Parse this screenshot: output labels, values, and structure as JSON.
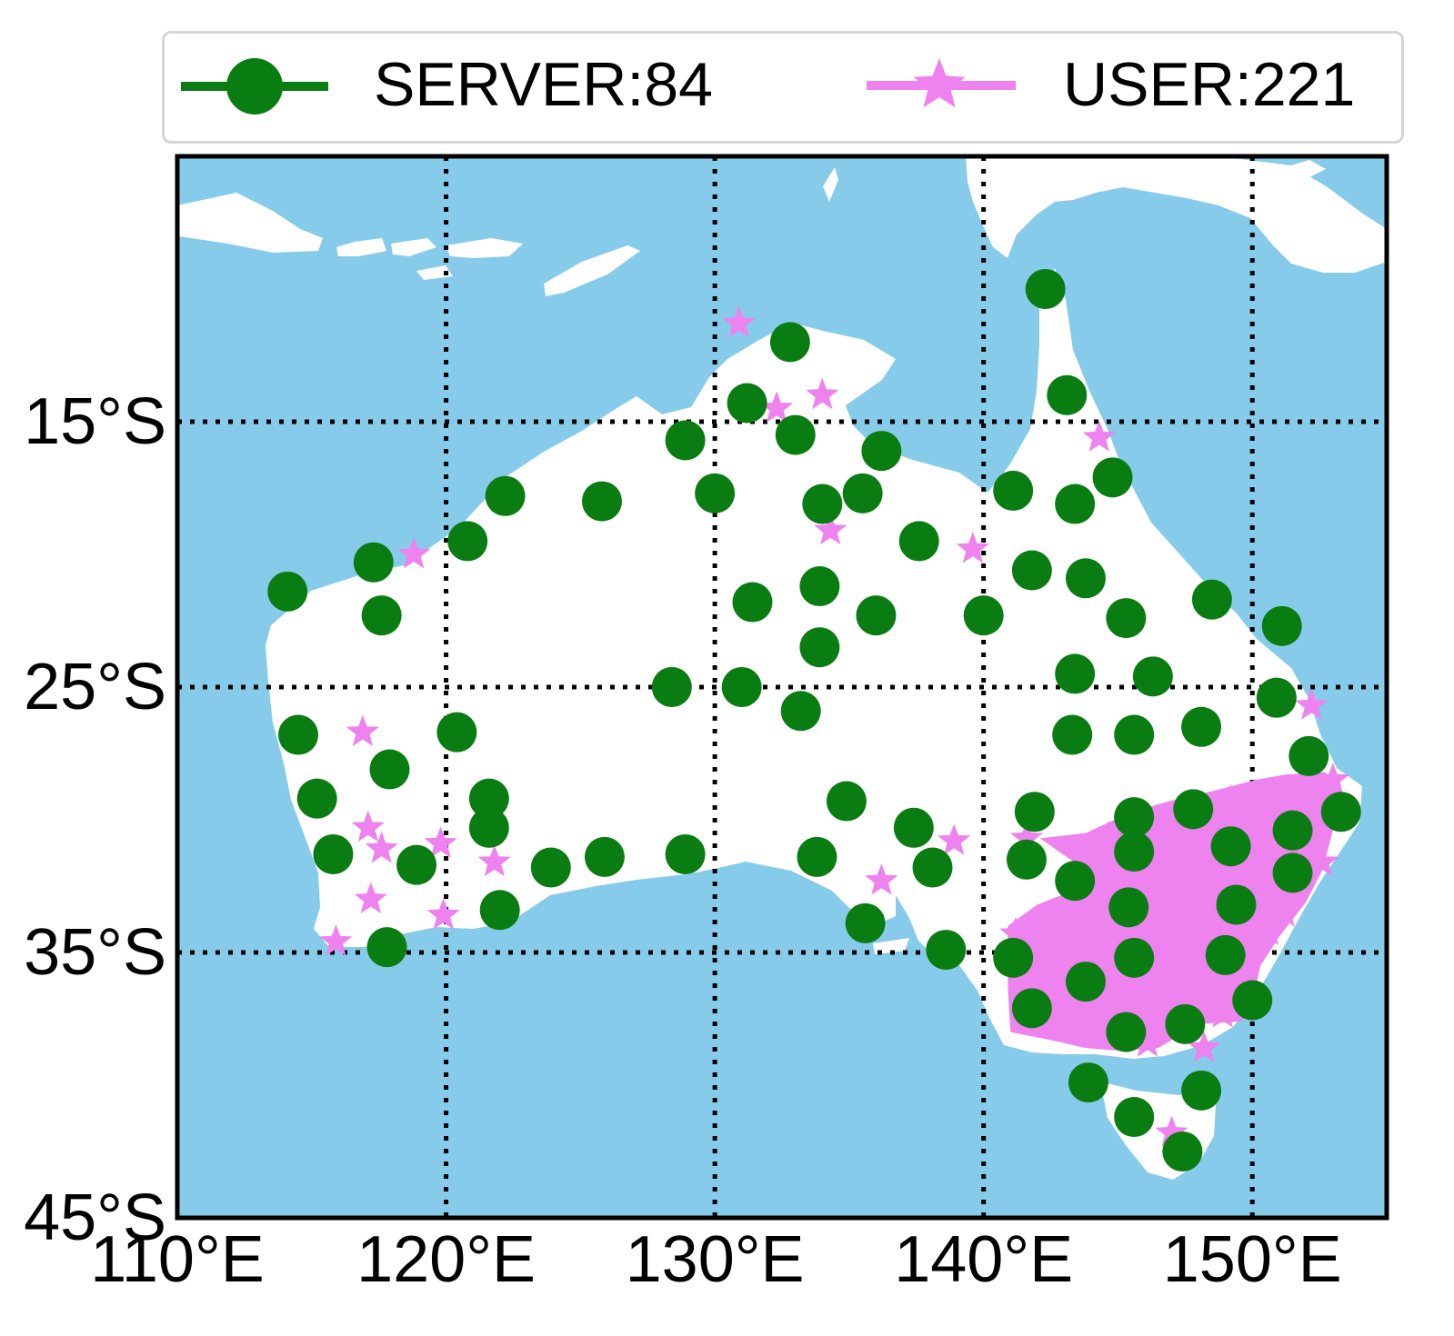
{
  "legend": {
    "server_label": "SERVER:84",
    "user_label": "USER:221"
  },
  "colors": {
    "ocean": "#87cbea",
    "land": "#ffffff",
    "server": "#0a7d12",
    "user": "#ee82ee",
    "grid": "#000000"
  },
  "axes": {
    "lon_range": [
      110,
      155
    ],
    "lat_range": [
      -45,
      -5
    ],
    "x_ticks": [
      "110°E",
      "120°E",
      "130°E",
      "140°E",
      "150°E"
    ],
    "y_ticks": [
      "15°S",
      "25°S",
      "35°S",
      "45°S"
    ],
    "grid": true,
    "grid_style": "dotted"
  },
  "map_data": {
    "servers": [
      [
        142.3,
        -10.0
      ],
      [
        143.1,
        -14.0
      ],
      [
        144.8,
        -17.1
      ],
      [
        131.2,
        -14.3
      ],
      [
        132.8,
        -12.0
      ],
      [
        133.0,
        -15.5
      ],
      [
        128.9,
        -15.7
      ],
      [
        130.0,
        -17.7
      ],
      [
        125.8,
        -18.0
      ],
      [
        122.2,
        -17.8
      ],
      [
        120.8,
        -19.5
      ],
      [
        117.3,
        -20.3
      ],
      [
        114.1,
        -21.4
      ],
      [
        117.6,
        -22.3
      ],
      [
        136.2,
        -16.1
      ],
      [
        135.5,
        -17.7
      ],
      [
        134.0,
        -18.1
      ],
      [
        137.6,
        -19.5
      ],
      [
        141.1,
        -17.6
      ],
      [
        143.4,
        -18.1
      ],
      [
        141.8,
        -20.6
      ],
      [
        143.8,
        -20.9
      ],
      [
        148.5,
        -21.7
      ],
      [
        133.9,
        -21.2
      ],
      [
        131.4,
        -21.8
      ],
      [
        136.0,
        -22.3
      ],
      [
        140.0,
        -22.3
      ],
      [
        145.3,
        -22.4
      ],
      [
        151.1,
        -22.7
      ],
      [
        133.9,
        -23.5
      ],
      [
        128.4,
        -25.0
      ],
      [
        131.0,
        -25.0
      ],
      [
        133.2,
        -25.9
      ],
      [
        143.4,
        -24.5
      ],
      [
        146.3,
        -24.6
      ],
      [
        150.9,
        -25.4
      ],
      [
        114.5,
        -26.8
      ],
      [
        120.4,
        -26.7
      ],
      [
        117.9,
        -28.1
      ],
      [
        115.2,
        -29.2
      ],
      [
        121.6,
        -29.2
      ],
      [
        143.3,
        -26.8
      ],
      [
        145.6,
        -26.8
      ],
      [
        148.1,
        -26.5
      ],
      [
        152.1,
        -27.6
      ],
      [
        134.9,
        -29.3
      ],
      [
        137.4,
        -30.3
      ],
      [
        141.9,
        -29.7
      ],
      [
        145.6,
        -29.9
      ],
      [
        147.8,
        -29.6
      ],
      [
        153.3,
        -29.7
      ],
      [
        115.8,
        -31.3
      ],
      [
        118.9,
        -31.7
      ],
      [
        121.6,
        -30.3
      ],
      [
        123.9,
        -31.8
      ],
      [
        125.9,
        -31.4
      ],
      [
        128.9,
        -31.3
      ],
      [
        133.8,
        -31.4
      ],
      [
        138.1,
        -31.8
      ],
      [
        141.6,
        -31.5
      ],
      [
        143.4,
        -32.3
      ],
      [
        145.6,
        -31.2
      ],
      [
        149.2,
        -31.0
      ],
      [
        151.5,
        -30.4
      ],
      [
        151.5,
        -32.0
      ],
      [
        122.0,
        -33.4
      ],
      [
        135.6,
        -33.9
      ],
      [
        117.8,
        -34.8
      ],
      [
        138.6,
        -34.9
      ],
      [
        141.1,
        -35.2
      ],
      [
        145.4,
        -33.3
      ],
      [
        149.4,
        -33.2
      ],
      [
        145.6,
        -35.2
      ],
      [
        149.0,
        -35.1
      ],
      [
        143.8,
        -36.1
      ],
      [
        141.8,
        -37.1
      ],
      [
        145.3,
        -38.0
      ],
      [
        147.5,
        -37.7
      ],
      [
        150.0,
        -36.8
      ],
      [
        143.9,
        -39.9
      ],
      [
        148.1,
        -40.2
      ],
      [
        145.6,
        -41.2
      ],
      [
        147.4,
        -42.5
      ]
    ],
    "users": [
      [
        130.9,
        -11.3
      ],
      [
        132.3,
        -14.5
      ],
      [
        134.0,
        -14.0
      ],
      [
        144.3,
        -15.6
      ],
      [
        134.3,
        -19.1
      ],
      [
        139.6,
        -19.8
      ],
      [
        118.8,
        -20.0
      ],
      [
        116.9,
        -26.7
      ],
      [
        117.1,
        -30.3
      ],
      [
        117.6,
        -31.1
      ],
      [
        119.8,
        -30.9
      ],
      [
        121.8,
        -31.6
      ],
      [
        117.2,
        -33.0
      ],
      [
        119.9,
        -33.6
      ],
      [
        115.9,
        -34.6
      ],
      [
        136.2,
        -32.3
      ],
      [
        138.9,
        -30.8
      ],
      [
        141.6,
        -30.7
      ],
      [
        152.2,
        -25.7
      ],
      [
        153.0,
        -28.5
      ],
      [
        147.0,
        -41.8
      ],
      [
        145.2,
        -30.3
      ],
      [
        141.2,
        -34.3
      ],
      [
        142.8,
        -34.6
      ],
      [
        144.5,
        -34.1
      ],
      [
        146.9,
        -34.4
      ],
      [
        147.7,
        -33.1
      ],
      [
        149.9,
        -32.3
      ],
      [
        150.6,
        -34.2
      ],
      [
        151.2,
        -33.5
      ],
      [
        150.1,
        -31.1
      ],
      [
        148.4,
        -31.8
      ],
      [
        146.7,
        -32.9
      ],
      [
        144.8,
        -36.5
      ],
      [
        146.3,
        -36.8
      ],
      [
        147.1,
        -37.6
      ],
      [
        148.9,
        -37.3
      ],
      [
        149.5,
        -35.9
      ],
      [
        142.6,
        -36.3
      ],
      [
        141.5,
        -35.7
      ],
      [
        143.7,
        -37.6
      ],
      [
        146.1,
        -38.4
      ],
      [
        148.2,
        -38.6
      ],
      [
        145.0,
        -34.8
      ],
      [
        149.2,
        -29.3
      ],
      [
        150.8,
        -29.6
      ],
      [
        152.3,
        -30.3
      ],
      [
        152.6,
        -31.6
      ]
    ],
    "user_cluster": [
      [
        142.1,
        -30.7
      ],
      [
        143.8,
        -30.5
      ],
      [
        145.5,
        -29.7
      ],
      [
        146.9,
        -29.3
      ],
      [
        148.6,
        -28.9
      ],
      [
        150.1,
        -28.5
      ],
      [
        151.2,
        -28.3
      ],
      [
        152.7,
        -28.2
      ],
      [
        153.3,
        -28.9
      ],
      [
        153.0,
        -30.4
      ],
      [
        152.6,
        -31.9
      ],
      [
        152.0,
        -33.1
      ],
      [
        151.0,
        -34.4
      ],
      [
        150.3,
        -35.5
      ],
      [
        150.0,
        -36.9
      ],
      [
        149.6,
        -37.6
      ],
      [
        148.0,
        -37.7
      ],
      [
        146.5,
        -38.6
      ],
      [
        145.0,
        -38.7
      ],
      [
        143.8,
        -38.6
      ],
      [
        142.5,
        -38.3
      ],
      [
        141.0,
        -38.0
      ],
      [
        140.9,
        -36.3
      ],
      [
        140.9,
        -34.0
      ],
      [
        142.0,
        -33.2
      ],
      [
        143.0,
        -32.8
      ],
      [
        143.8,
        -31.9
      ]
    ]
  }
}
